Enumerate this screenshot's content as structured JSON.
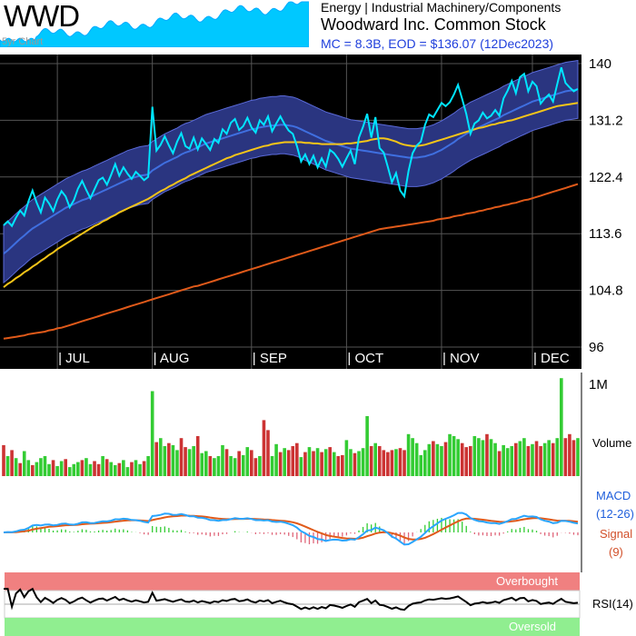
{
  "header": {
    "ticker": "WWD",
    "spark_caption": "5yr Chart",
    "sector": "Energy | Industrial Machinery/Components",
    "company": "Woodward Inc. Common Stock",
    "stats": "MC = 8.3B, EOD = $136.07 (12Dec2023)"
  },
  "colors": {
    "price": "#00e5ff",
    "sma50": "#f5c518",
    "sma200": "#e05a1a",
    "band_fill": "#2a3580",
    "macd": "#2aa5ff",
    "signal": "#e05a1a",
    "vol_up": "#33cc33",
    "vol_down": "#cc3333",
    "rsi_overbought": "#f08080",
    "rsi_oversold": "#90ee90"
  },
  "chart_data": [
    {
      "type": "line",
      "name": "price",
      "yticks": [
        140,
        131.2,
        122.4,
        113.6,
        104.8,
        96
      ],
      "ylim": [
        96,
        140
      ],
      "xticks": [
        "JUL",
        "AUG",
        "SEP",
        "OCT",
        "NOV",
        "DEC"
      ],
      "xtick_index": [
        13,
        36,
        60,
        83,
        106,
        128
      ],
      "n_days": 140,
      "series": [
        {
          "name": "price",
          "values": [
            114.9,
            115.5,
            114.8,
            116.1,
            117.2,
            116.4,
            118.6,
            120.3,
            118.4,
            116.9,
            119.2,
            118.3,
            117.1,
            118.9,
            120.2,
            119.4,
            117.7,
            118.8,
            120.6,
            121.8,
            120.4,
            119.1,
            120.5,
            121.9,
            122.3,
            121.2,
            122.7,
            124.4,
            122.6,
            123.9,
            122.9,
            122.1,
            123.2,
            122.6,
            121.9,
            122.4,
            133.3,
            126.5,
            127.4,
            128.7,
            127.3,
            126.1,
            127.9,
            129.2,
            127.2,
            126.8,
            128.5,
            126.7,
            128.4,
            127.5,
            126.6,
            128.3,
            127.7,
            129.8,
            129.1,
            130.8,
            131.4,
            129.7,
            130.3,
            131.6,
            130.1,
            129.3,
            131.2,
            130.5,
            131.8,
            129.5,
            130.7,
            131.8,
            130.6,
            129.6,
            129.1,
            127.2,
            124.8,
            125.9,
            124.4,
            125.7,
            123.9,
            125.3,
            124.0,
            126.6,
            126.1,
            125.2,
            124.0,
            125.3,
            126.5,
            124.4,
            128.5,
            130.2,
            132.2,
            128.5,
            131.7,
            126.9,
            126.2,
            124.0,
            121.6,
            123.0,
            120.3,
            119.4,
            123.3,
            126.1,
            127.3,
            127.9,
            130.5,
            132.1,
            131.7,
            132.8,
            133.9,
            133.4,
            134.0,
            135.2,
            136.7,
            134.5,
            132.2,
            129.1,
            130.7,
            131.2,
            132.4,
            131.5,
            131.9,
            132.8,
            131.9,
            134.6,
            135.8,
            137.3,
            135.4,
            137.9,
            138.4,
            135.7,
            137.2,
            136.5,
            133.8,
            134.6,
            135.2,
            134.1,
            136.8,
            139.4,
            137.0,
            136.3,
            135.7,
            136.07
          ]
        },
        {
          "name": "sma20",
          "values": [
            110.5,
            111.0,
            111.6,
            112.2,
            112.8,
            113.3,
            113.9,
            114.4,
            114.8,
            115.2,
            115.6,
            116.0,
            116.4,
            116.8,
            117.2,
            117.6,
            117.9,
            118.2,
            118.5,
            118.8,
            119.0,
            119.3,
            119.6,
            119.9,
            120.2,
            120.5,
            120.8,
            121.1,
            121.4,
            121.7,
            122.0,
            122.2,
            122.4,
            122.6,
            122.7,
            122.8,
            123.4,
            123.8,
            124.2,
            124.6,
            124.9,
            125.2,
            125.5,
            125.9,
            126.2,
            126.4,
            126.7,
            127.0,
            127.3,
            127.6,
            127.8,
            128.0,
            128.2,
            128.4,
            128.6,
            128.8,
            129.0,
            129.2,
            129.4,
            129.6,
            129.8,
            129.9,
            130.1,
            130.2,
            130.3,
            130.4,
            130.4,
            130.5,
            130.5,
            130.4,
            130.3,
            130.1,
            129.8,
            129.5,
            129.2,
            128.9,
            128.6,
            128.3,
            128.0,
            127.8,
            127.6,
            127.4,
            127.2,
            127.0,
            126.8,
            126.7,
            126.6,
            126.5,
            126.4,
            126.3,
            126.2,
            126.1,
            126.0,
            125.9,
            125.8,
            125.7,
            125.6,
            125.5,
            125.4,
            125.4,
            125.4,
            125.5,
            125.6,
            125.8,
            126.0,
            126.3,
            126.6,
            127.0,
            127.4,
            127.8,
            128.3,
            128.7,
            129.1,
            129.5,
            129.8,
            130.1,
            130.4,
            130.7,
            131.0,
            131.3,
            131.6,
            132.0,
            132.3,
            132.6,
            132.9,
            133.2,
            133.5,
            133.8,
            134.1,
            134.3,
            134.5,
            134.7,
            134.9,
            135.1,
            135.3,
            135.5,
            135.7,
            135.8,
            135.9,
            136.0
          ]
        },
        {
          "name": "sma50",
          "values": [
            105.3,
            105.8,
            106.2,
            106.7,
            107.1,
            107.6,
            108.0,
            108.5,
            108.9,
            109.4,
            109.8,
            110.3,
            110.7,
            111.2,
            111.6,
            112.0,
            112.4,
            112.8,
            113.2,
            113.6,
            114.0,
            114.4,
            114.8,
            115.1,
            115.5,
            115.8,
            116.2,
            116.5,
            116.9,
            117.2,
            117.5,
            117.8,
            118.1,
            118.4,
            118.7,
            119.0,
            119.4,
            119.8,
            120.2,
            120.5,
            120.9,
            121.2,
            121.6,
            121.9,
            122.2,
            122.6,
            122.9,
            123.2,
            123.5,
            123.8,
            124.1,
            124.4,
            124.7,
            125.0,
            125.3,
            125.5,
            125.8,
            126.0,
            126.2,
            126.4,
            126.6,
            126.8,
            127.0,
            127.2,
            127.3,
            127.5,
            127.6,
            127.7,
            127.8,
            127.8,
            127.8,
            127.8,
            127.8,
            127.7,
            127.7,
            127.6,
            127.6,
            127.5,
            127.5,
            127.5,
            127.5,
            127.5,
            127.5,
            127.6,
            127.6,
            127.7,
            127.8,
            127.9,
            128.0,
            128.2,
            128.3,
            128.4,
            128.4,
            128.3,
            128.1,
            127.9,
            127.6,
            127.4,
            127.3,
            127.2,
            127.2,
            127.3,
            127.4,
            127.6,
            127.8,
            128.0,
            128.2,
            128.4,
            128.6,
            128.8,
            129.0,
            129.2,
            129.4,
            129.6,
            129.8,
            130.0,
            130.1,
            130.3,
            130.5,
            130.6,
            130.8,
            130.9,
            131.1,
            131.2,
            131.4,
            131.6,
            131.8,
            132.0,
            132.2,
            132.4,
            132.6,
            132.8,
            133.0,
            133.2,
            133.4,
            133.5,
            133.6,
            133.7,
            133.8,
            133.9
          ]
        },
        {
          "name": "sma200",
          "values": [
            97.3,
            97.4,
            97.5,
            97.6,
            97.7,
            97.8,
            98.0,
            98.1,
            98.2,
            98.3,
            98.4,
            98.6,
            98.7,
            98.9,
            99.0,
            99.2,
            99.4,
            99.6,
            99.8,
            100.0,
            100.2,
            100.4,
            100.6,
            100.8,
            101.0,
            101.2,
            101.4,
            101.6,
            101.8,
            102.0,
            102.2,
            102.4,
            102.6,
            102.8,
            103.0,
            103.2,
            103.4,
            103.6,
            103.8,
            104.0,
            104.2,
            104.4,
            104.6,
            104.8,
            105.0,
            105.2,
            105.4,
            105.5,
            105.7,
            105.9,
            106.1,
            106.3,
            106.5,
            106.7,
            106.9,
            107.1,
            107.3,
            107.5,
            107.7,
            107.9,
            108.1,
            108.3,
            108.5,
            108.7,
            108.9,
            109.1,
            109.3,
            109.5,
            109.7,
            109.9,
            110.1,
            110.3,
            110.5,
            110.7,
            110.9,
            111.1,
            111.3,
            111.5,
            111.7,
            111.9,
            112.1,
            112.3,
            112.5,
            112.7,
            112.9,
            113.1,
            113.3,
            113.5,
            113.7,
            113.9,
            114.1,
            114.3,
            114.4,
            114.5,
            114.6,
            114.7,
            114.8,
            114.9,
            115.0,
            115.1,
            115.2,
            115.3,
            115.4,
            115.5,
            115.6,
            115.8,
            115.9,
            116.0,
            116.1,
            116.3,
            116.4,
            116.5,
            116.7,
            116.8,
            116.9,
            117.1,
            117.2,
            117.4,
            117.5,
            117.7,
            117.8,
            118.0,
            118.1,
            118.3,
            118.4,
            118.6,
            118.8,
            118.9,
            119.1,
            119.3,
            119.5,
            119.7,
            119.9,
            120.1,
            120.3,
            120.5,
            120.7,
            120.9,
            121.1,
            121.3
          ]
        }
      ],
      "bollinger": {
        "upper_offset": 4.5,
        "lower_offset": 4.5
      }
    },
    {
      "type": "bar",
      "name": "volume",
      "ylabel": "Volume",
      "ytick": "1M",
      "ylim": [
        0,
        1000000
      ],
      "values": [
        310000,
        200000,
        260000,
        180000,
        130000,
        250000,
        160000,
        110000,
        140000,
        180000,
        200000,
        120000,
        160000,
        100000,
        150000,
        170000,
        90000,
        120000,
        140000,
        160000,
        180000,
        120000,
        150000,
        120000,
        200000,
        170000,
        140000,
        110000,
        130000,
        160000,
        90000,
        140000,
        160000,
        120000,
        150000,
        200000,
        850000,
        340000,
        380000,
        300000,
        330000,
        310000,
        260000,
        380000,
        290000,
        270000,
        300000,
        400000,
        230000,
        250000,
        200000,
        180000,
        200000,
        310000,
        270000,
        200000,
        180000,
        250000,
        210000,
        290000,
        260000,
        180000,
        200000,
        560000,
        460000,
        200000,
        320000,
        240000,
        280000,
        260000,
        300000,
        330000,
        190000,
        240000,
        290000,
        250000,
        280000,
        240000,
        270000,
        290000,
        240000,
        200000,
        210000,
        360000,
        270000,
        230000,
        250000,
        280000,
        600000,
        300000,
        330000,
        300000,
        260000,
        240000,
        260000,
        270000,
        280000,
        260000,
        420000,
        380000,
        330000,
        210000,
        260000,
        320000,
        350000,
        320000,
        300000,
        340000,
        420000,
        400000,
        370000,
        330000,
        290000,
        300000,
        400000,
        380000,
        360000,
        420000,
        370000,
        330000,
        250000,
        310000,
        280000,
        300000,
        330000,
        350000,
        380000,
        300000,
        320000,
        350000,
        300000,
        330000,
        360000,
        330000,
        380000,
        980000,
        380000,
        420000,
        360000,
        380000
      ],
      "down_flags": [
        1,
        0,
        1,
        0,
        1,
        0,
        0,
        1,
        0,
        0,
        0,
        0,
        1,
        0,
        0,
        1,
        0,
        0,
        0,
        1,
        0,
        0,
        1,
        1,
        0,
        1,
        0,
        0,
        1,
        0,
        0,
        1,
        0,
        0,
        1,
        0,
        0,
        1,
        0,
        0,
        1,
        0,
        0,
        1,
        1,
        0,
        0,
        1,
        0,
        0,
        1,
        0,
        0,
        0,
        1,
        0,
        0,
        1,
        0,
        0,
        1,
        1,
        0,
        1,
        1,
        0,
        0,
        1,
        0,
        1,
        1,
        1,
        0,
        1,
        0,
        1,
        0,
        1,
        0,
        1,
        0,
        1,
        1,
        0,
        0,
        1,
        0,
        0,
        0,
        1,
        0,
        1,
        1,
        1,
        1,
        0,
        1,
        1,
        0,
        0,
        0,
        0,
        0,
        0,
        1,
        0,
        0,
        1,
        0,
        0,
        0,
        1,
        1,
        1,
        0,
        0,
        0,
        1,
        0,
        0,
        1,
        0,
        0,
        0,
        1,
        0,
        0,
        1,
        0,
        1,
        1,
        0,
        0,
        1,
        0,
        0,
        1,
        1,
        1,
        0
      ]
    },
    {
      "type": "line",
      "name": "macd",
      "labels": [
        "MACD",
        "(12-26)",
        "Signal",
        "(9)"
      ]
    },
    {
      "type": "line",
      "name": "rsi",
      "label": "RSI(14)",
      "overbought_label": "Overbought",
      "oversold_label": "Oversold",
      "ylim": [
        0,
        100
      ]
    }
  ]
}
